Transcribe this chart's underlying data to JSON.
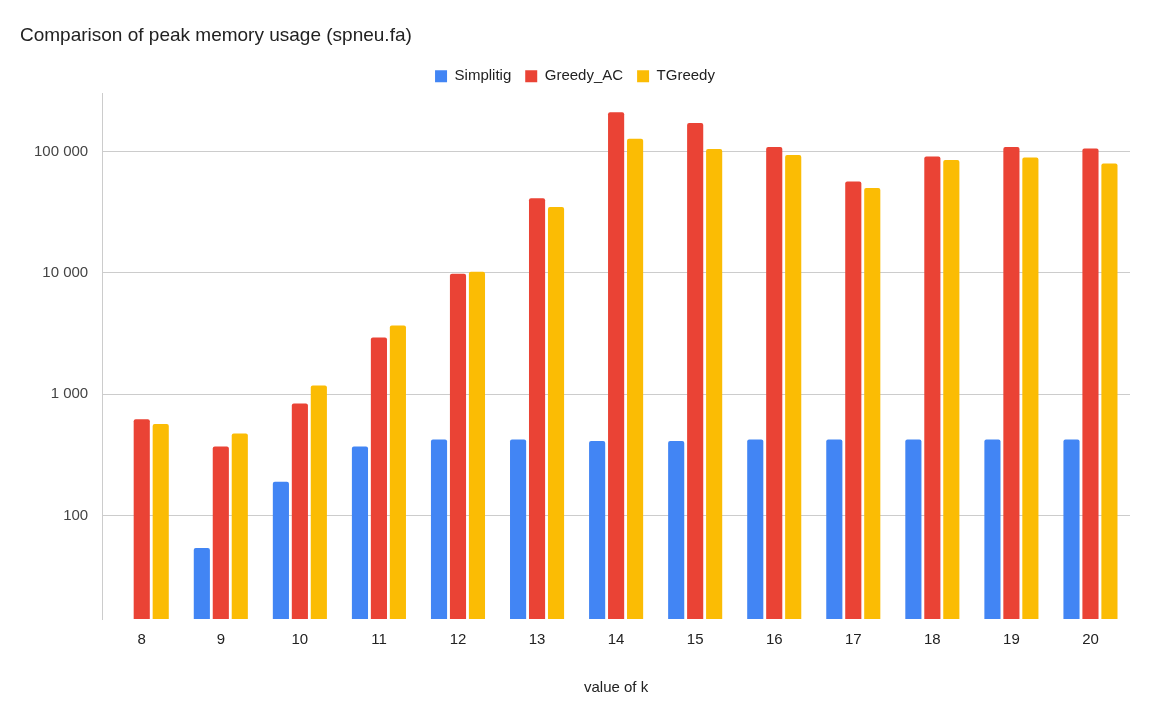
{
  "chart_data": {
    "type": "bar",
    "title": "Comparison of peak memory usage (spneu.fa)",
    "xlabel": "value of k",
    "categories": [
      "8",
      "9",
      "10",
      "11",
      "12",
      "13",
      "14",
      "15",
      "16",
      "17",
      "18",
      "19",
      "20"
    ],
    "series": [
      {
        "name": "Simplitig",
        "color": "#4285f4",
        "values": [
          null,
          54,
          190,
          370,
          423,
          423,
          411,
          411,
          423,
          423,
          423,
          423,
          423
        ]
      },
      {
        "name": "Greedy_AC",
        "color": "#ea4335",
        "values": [
          620,
          370,
          837,
          2940,
          9840,
          41300,
          211000,
          172600,
          109000,
          56700,
          91200,
          109000,
          106000
        ]
      },
      {
        "name": "TGreedy",
        "color": "#fbbc04",
        "values": [
          568,
          474,
          1180,
          3690,
          10240,
          35000,
          128000,
          105000,
          93800,
          50200,
          85300,
          89300,
          79800
        ]
      }
    ],
    "log": true,
    "ylim": [
      14,
      300000
    ],
    "yticks": [
      100,
      {
        "value": 1000,
        "label": "1 000"
      },
      {
        "value": 10000,
        "label": "10 000"
      },
      {
        "value": 100000,
        "label": "100 000"
      }
    ],
    "grid": "y",
    "legend": "top"
  }
}
